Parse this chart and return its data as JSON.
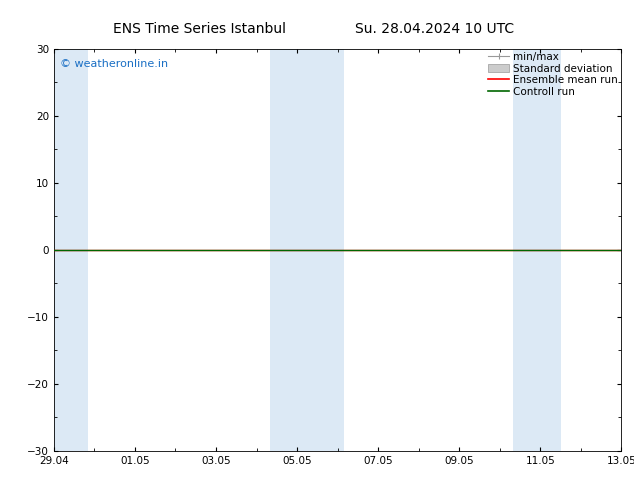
{
  "title_left": "ENS Time Series Istanbul",
  "title_right": "Su. 28.04.2024 10 UTC",
  "watermark": "© weatheronline.in",
  "watermark_color": "#1a6fc4",
  "ylim": [
    -30,
    30
  ],
  "yticks": [
    -30,
    -20,
    -10,
    0,
    10,
    20,
    30
  ],
  "xlim": [
    0,
    14
  ],
  "xtick_labels": [
    "29.04",
    "01.05",
    "03.05",
    "05.05",
    "07.05",
    "09.05",
    "11.05",
    "13.05"
  ],
  "xtick_positions": [
    0,
    2,
    4,
    6,
    8,
    10,
    12,
    14
  ],
  "background_color": "#ffffff",
  "plot_bg_color": "#ffffff",
  "shaded_bands": [
    {
      "x_start": 0.0,
      "x_end": 0.83,
      "color": "#dce9f5"
    },
    {
      "x_start": 5.33,
      "x_end": 7.17,
      "color": "#dce9f5"
    },
    {
      "x_start": 11.33,
      "x_end": 12.5,
      "color": "#dce9f5"
    }
  ],
  "zero_line_y": 0,
  "zero_line_color": "#000000",
  "control_run_y": 0,
  "control_run_color": "#006600",
  "ensemble_mean_color": "#ff0000",
  "legend_labels": [
    "min/max",
    "Standard deviation",
    "Ensemble mean run",
    "Controll run"
  ],
  "legend_colors": [
    "#999999",
    "#cccccc",
    "#ff0000",
    "#006600"
  ],
  "title_fontsize": 10,
  "tick_fontsize": 7.5,
  "legend_fontsize": 7.5,
  "watermark_fontsize": 8
}
